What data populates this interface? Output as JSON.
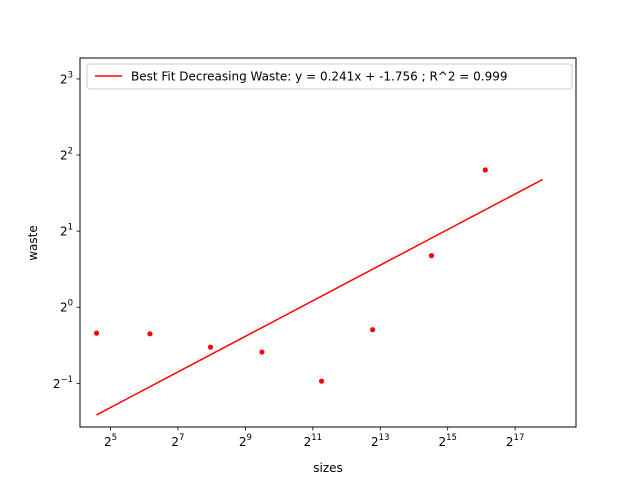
{
  "chart_data": {
    "type": "scatter",
    "xlabel": "sizes",
    "ylabel": "waste",
    "x_scale": "log2",
    "y_scale": "log2",
    "xlim": [
      17.1,
      458000
    ],
    "ylim": [
      0.336,
      9.68
    ],
    "x_ticks": [
      {
        "value": 32,
        "base": "2",
        "exp": "5"
      },
      {
        "value": 128,
        "base": "2",
        "exp": "7"
      },
      {
        "value": 512,
        "base": "2",
        "exp": "9"
      },
      {
        "value": 2048,
        "base": "2",
        "exp": "11"
      },
      {
        "value": 8192,
        "base": "2",
        "exp": "13"
      },
      {
        "value": 32768,
        "base": "2",
        "exp": "15"
      },
      {
        "value": 131072,
        "base": "2",
        "exp": "17"
      }
    ],
    "y_ticks": [
      {
        "value": 0.5,
        "base": "2",
        "exp": "−1"
      },
      {
        "value": 1,
        "base": "2",
        "exp": "0"
      },
      {
        "value": 2,
        "base": "2",
        "exp": "1"
      },
      {
        "value": 4,
        "base": "2",
        "exp": "2"
      },
      {
        "value": 8,
        "base": "2",
        "exp": "3"
      }
    ],
    "series": [
      {
        "kind": "points",
        "color": "#ff0000",
        "x": [
          24,
          72,
          250,
          720,
          2450,
          7000,
          23500,
          71000
        ],
        "y": [
          0.79,
          0.785,
          0.695,
          0.665,
          0.51,
          0.815,
          1.6,
          3.49
        ]
      },
      {
        "kind": "fit-line",
        "name": "Best Fit Decreasing Waste: y = 0.241x + -1.756 ; R^2 = 0.999",
        "color": "#ff0000",
        "x": [
          24,
          230000
        ],
        "y": [
          0.375,
          3.2
        ]
      }
    ],
    "legend": {
      "position": "top-left",
      "entries": [
        "Best Fit Decreasing Waste: y = 0.241x + -1.756 ; R^2 = 0.999"
      ]
    }
  }
}
